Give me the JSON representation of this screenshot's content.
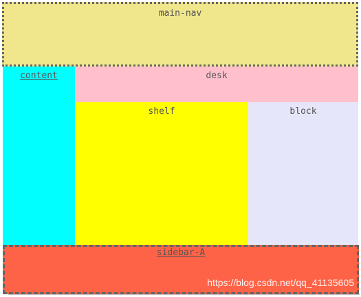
{
  "regions": {
    "main_nav": {
      "label": "main-nav",
      "color": "#f0e68c"
    },
    "content": {
      "label": "content",
      "color": "#00ffff"
    },
    "desk": {
      "label": "desk",
      "color": "#ffc0cb"
    },
    "shelf": {
      "label": "shelf",
      "color": "#ffff00"
    },
    "block": {
      "label": "block",
      "color": "#e6e6fa"
    },
    "sidebar_a": {
      "label": "sidebar-A",
      "color": "#ff6347"
    }
  },
  "watermark": "https://blog.csdn.net/qq_41135605"
}
